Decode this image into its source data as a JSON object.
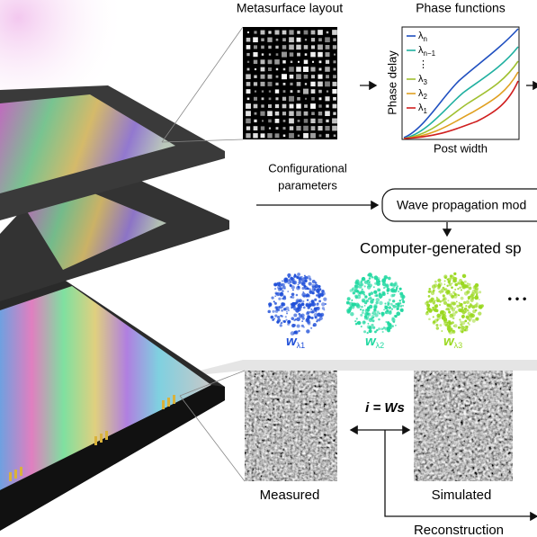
{
  "layout": {
    "title": "Metasurface layout"
  },
  "phase": {
    "title": "Phase functions",
    "ylabel": "Phase delay",
    "xlabel": "Post width",
    "legend": [
      {
        "symbol": "λ",
        "sub": "n"
      },
      {
        "symbol": "λ",
        "sub": "n−1"
      },
      {
        "symbol": "⋮",
        "sub": ""
      },
      {
        "symbol": "λ",
        "sub": "3"
      },
      {
        "symbol": "λ",
        "sub": "2"
      },
      {
        "symbol": "λ",
        "sub": "1"
      }
    ]
  },
  "flow": {
    "params": [
      "Configurational",
      "parameters"
    ],
    "model": "Wave propagation mod",
    "generated": "Computer-generated sp",
    "weights": [
      {
        "symbol": "w",
        "sub": "λ1"
      },
      {
        "symbol": "w",
        "sub": "λ2"
      },
      {
        "symbol": "w",
        "sub": "λ3"
      }
    ],
    "ellipsis": "• • •"
  },
  "bottom": {
    "equation": "i = Ws",
    "measured": "Measured",
    "simulated": "Simulated",
    "reconstruction": "Reconstruction"
  }
}
